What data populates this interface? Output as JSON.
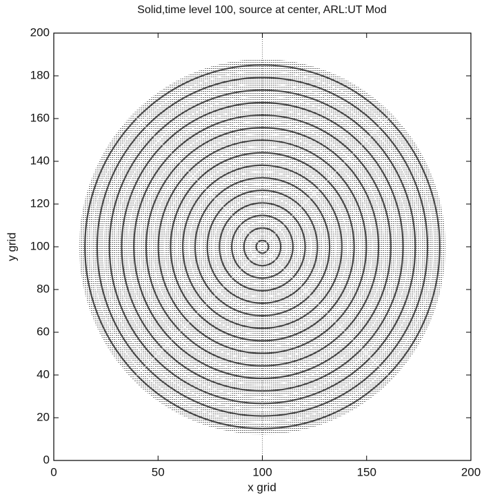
{
  "chart_data": {
    "type": "image",
    "title": "Solid,time level 100, source at center, ARL:UT Mod",
    "x_label": "x grid",
    "y_label": "y grid",
    "xlim": [
      0,
      200
    ],
    "ylim": [
      0,
      200
    ],
    "xticks": [
      0,
      50,
      100,
      150,
      200
    ],
    "yticks": [
      0,
      20,
      40,
      60,
      80,
      100,
      120,
      140,
      160,
      180,
      200
    ]
  }
}
